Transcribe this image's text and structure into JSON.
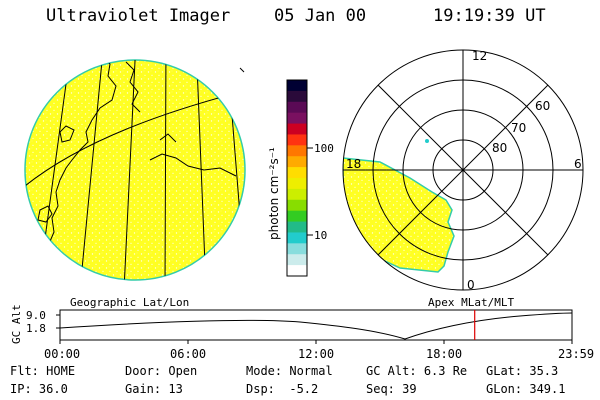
{
  "header": {
    "instrument": "Ultraviolet Imager",
    "date": "05 Jan 00",
    "time": "19:19:39 UT"
  },
  "colorbar": {
    "unit_label": "photon cm⁻²s⁻¹",
    "tick_100": "100",
    "tick_10": "10",
    "colors": [
      "#000033",
      "#2a0a3a",
      "#5a0a55",
      "#7a1060",
      "#cc0022",
      "#ff3311",
      "#ff7700",
      "#ffaa00",
      "#ffdd00",
      "#eeee00",
      "#ccee00",
      "#88dd00",
      "#33cc22",
      "#22bb88",
      "#22cccc",
      "#88dddd",
      "#ccecec",
      "#ffffff"
    ]
  },
  "polar": {
    "mlt_12": "12",
    "mlt_18": "18",
    "mlt_6": "6",
    "mlt_0": "0",
    "lat_60": "60",
    "lat_70": "70",
    "lat_80": "80",
    "aurora_color": "#ffff22"
  },
  "labels": {
    "left_projection": "Geographic Lat/Lon",
    "right_projection": "Apex MLat/MLT"
  },
  "altitude_plot": {
    "axis_label": "GC Alt",
    "y_max": "9.0",
    "y_min": "1.8",
    "times": [
      "00:00",
      "06:00",
      "12:00",
      "18:00",
      "23:59"
    ],
    "current_time_fraction": 0.81,
    "marker_color": "#dd0000"
  },
  "footer": {
    "rows": [
      [
        {
          "k": "Flt:",
          "v": "HOME"
        },
        {
          "k": "Door:",
          "v": "Open"
        },
        {
          "k": "Mode:",
          "v": "Normal"
        },
        {
          "k": "GC Alt:",
          "v": "6.3 Re"
        },
        {
          "k": "GLat:",
          "v": "35.3"
        }
      ],
      [
        {
          "k": "IP:",
          "v": "36.0"
        },
        {
          "k": "Gain:",
          "v": "13"
        },
        {
          "k": "Dsp:",
          "v": "-5.2"
        },
        {
          "k": "Seq:",
          "v": "39"
        },
        {
          "k": "GLon:",
          "v": "349.1"
        }
      ]
    ]
  }
}
